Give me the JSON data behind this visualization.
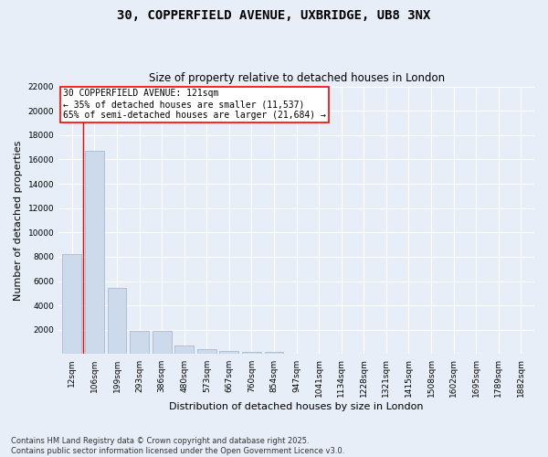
{
  "title_line1": "30, COPPERFIELD AVENUE, UXBRIDGE, UB8 3NX",
  "title_line2": "Size of property relative to detached houses in London",
  "xlabel": "Distribution of detached houses by size in London",
  "ylabel": "Number of detached properties",
  "categories": [
    "12sqm",
    "106sqm",
    "199sqm",
    "293sqm",
    "386sqm",
    "480sqm",
    "573sqm",
    "667sqm",
    "760sqm",
    "854sqm",
    "947sqm",
    "1041sqm",
    "1134sqm",
    "1228sqm",
    "1321sqm",
    "1415sqm",
    "1508sqm",
    "1602sqm",
    "1695sqm",
    "1789sqm",
    "1882sqm"
  ],
  "values": [
    8200,
    16700,
    5450,
    1900,
    1900,
    700,
    380,
    290,
    210,
    160,
    0,
    0,
    0,
    0,
    0,
    0,
    0,
    0,
    0,
    0,
    0
  ],
  "bar_color": "#ccdaeb",
  "bar_edge_color": "#aabbd0",
  "vline_x": 0.5,
  "vline_color": "red",
  "annotation_text": "30 COPPERFIELD AVENUE: 121sqm\n← 35% of detached houses are smaller (11,537)\n65% of semi-detached houses are larger (21,684) →",
  "annotation_box_color": "red",
  "annotation_text_color": "black",
  "annotation_bg": "white",
  "ylim": [
    0,
    22000
  ],
  "yticks": [
    0,
    2000,
    4000,
    6000,
    8000,
    10000,
    12000,
    14000,
    16000,
    18000,
    20000,
    22000
  ],
  "background_color": "#e8eef8",
  "grid_color": "white",
  "footer_text": "Contains HM Land Registry data © Crown copyright and database right 2025.\nContains public sector information licensed under the Open Government Licence v3.0.",
  "title_fontsize": 10,
  "subtitle_fontsize": 8.5,
  "tick_fontsize": 6.5,
  "ylabel_fontsize": 8,
  "xlabel_fontsize": 8,
  "footer_fontsize": 6,
  "annot_fontsize": 7
}
